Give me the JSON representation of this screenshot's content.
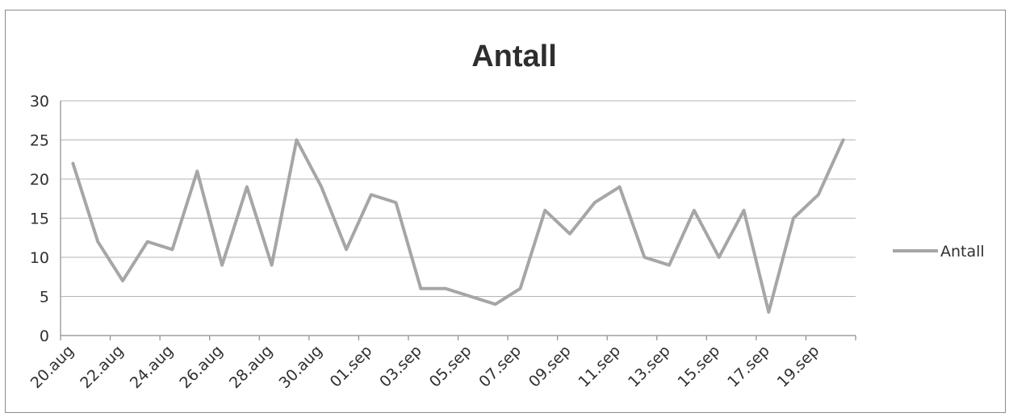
{
  "chart_data": {
    "type": "line",
    "title": "Antall",
    "xlabel": "",
    "ylabel": "",
    "ylim": [
      0,
      30
    ],
    "yticks": [
      0,
      5,
      10,
      15,
      20,
      25,
      30
    ],
    "grid": true,
    "legend_position": "right",
    "x": [
      "20.aug",
      "21.aug",
      "22.aug",
      "23.aug",
      "24.aug",
      "25.aug",
      "26.aug",
      "27.aug",
      "28.aug",
      "29.aug",
      "30.aug",
      "31.aug",
      "01.sep",
      "02.sep",
      "03.sep",
      "04.sep",
      "05.sep",
      "06.sep",
      "07.sep",
      "08.sep",
      "09.sep",
      "10.sep",
      "11.sep",
      "12.sep",
      "13.sep",
      "14.sep",
      "15.sep",
      "16.sep",
      "17.sep",
      "18.sep",
      "19.sep",
      "20.sep"
    ],
    "x_tick_labels": [
      "20.aug",
      "22.aug",
      "24.aug",
      "26.aug",
      "28.aug",
      "30.aug",
      "01.sep",
      "03.sep",
      "05.sep",
      "07.sep",
      "09.sep",
      "11.sep",
      "13.sep",
      "15.sep",
      "17.sep",
      "19.sep"
    ],
    "series": [
      {
        "name": "Antall",
        "color": "#a6a6a6",
        "values": [
          22,
          12,
          7,
          12,
          11,
          21,
          9,
          19,
          9,
          25,
          19,
          11,
          18,
          17,
          6,
          6,
          5,
          4,
          6,
          16,
          13,
          17,
          19,
          10,
          9,
          16,
          10,
          16,
          3,
          15,
          18,
          25
        ]
      }
    ]
  }
}
